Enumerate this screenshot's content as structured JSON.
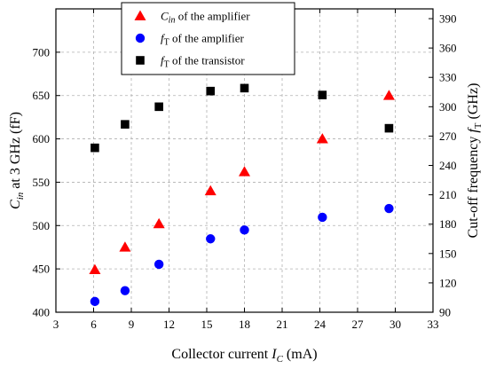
{
  "chart_data": {
    "type": "scatter",
    "x_axis": {
      "label_main": "Collector current ",
      "label_var": "I",
      "label_sub": "C",
      "label_unit": " (mA)",
      "range": [
        3,
        33
      ],
      "ticks": [
        3,
        6,
        9,
        12,
        15,
        18,
        21,
        24,
        27,
        30,
        33
      ]
    },
    "y_left": {
      "label_var": "C",
      "label_sub": "in",
      "label_rest": " at 3 GHz (fF)",
      "range": [
        400,
        750
      ],
      "ticks": [
        400,
        450,
        500,
        550,
        600,
        650,
        700
      ]
    },
    "y_right": {
      "label_main": "Cut-off frequency ",
      "label_var": "f",
      "label_sub": "T",
      "label_unit": " (GHz)",
      "range": [
        90,
        400
      ],
      "ticks": [
        90,
        120,
        150,
        180,
        210,
        240,
        270,
        300,
        330,
        360,
        390
      ]
    },
    "grid": true,
    "legend_position": "top-center",
    "series": [
      {
        "legend_var": "C",
        "legend_sub": "in",
        "legend_rest": " of the amplifier",
        "axis": "left",
        "marker": "triangle",
        "color": "#ff0000",
        "points": [
          [
            6.1,
            449
          ],
          [
            8.5,
            475
          ],
          [
            11.2,
            502
          ],
          [
            15.3,
            540
          ],
          [
            18.0,
            562
          ],
          [
            24.2,
            600
          ],
          [
            29.5,
            650
          ]
        ]
      },
      {
        "legend_var": "f",
        "legend_sub": "T",
        "legend_rest": " of the amplifier",
        "axis": "right",
        "marker": "circle",
        "color": "#0000ff",
        "points": [
          [
            6.1,
            101
          ],
          [
            8.5,
            112
          ],
          [
            11.2,
            139
          ],
          [
            15.3,
            165
          ],
          [
            18.0,
            174
          ],
          [
            24.2,
            187
          ],
          [
            29.5,
            196
          ]
        ]
      },
      {
        "legend_var": "f",
        "legend_sub": "T",
        "legend_rest": " of the transistor",
        "axis": "right",
        "marker": "square",
        "color": "#000000",
        "points": [
          [
            6.1,
            258
          ],
          [
            8.5,
            282
          ],
          [
            11.2,
            300
          ],
          [
            15.3,
            316
          ],
          [
            18.0,
            319
          ],
          [
            24.2,
            312
          ],
          [
            29.5,
            278
          ]
        ]
      }
    ]
  }
}
